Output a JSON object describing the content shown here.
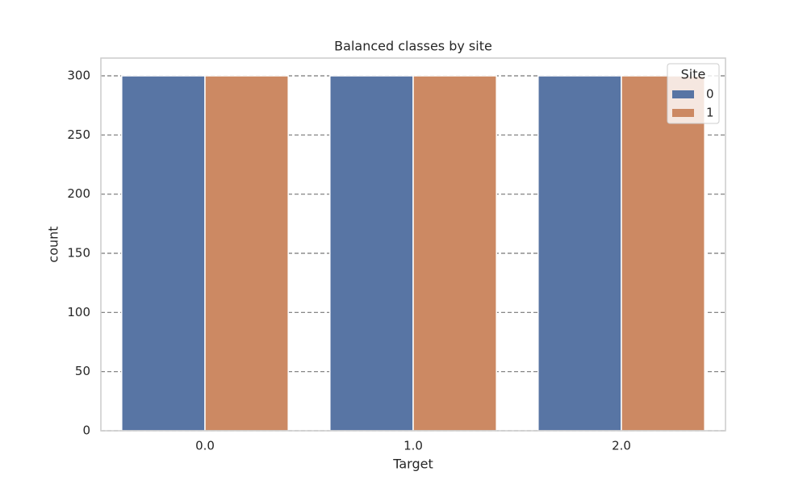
{
  "chart_data": {
    "type": "bar",
    "title": "Balanced classes by site",
    "x_label": "Target",
    "y_label": "count",
    "categories": [
      "0.0",
      "1.0",
      "2.0"
    ],
    "series": [
      {
        "name": "0",
        "color": "#5875a4",
        "values": [
          300,
          300,
          300
        ]
      },
      {
        "name": "1",
        "color": "#cc8963",
        "values": [
          300,
          300,
          300
        ]
      }
    ],
    "legend_title": "Site",
    "legend": "upper right",
    "ylim": [
      0,
      315
    ],
    "yticks": [
      0,
      50,
      100,
      150,
      200,
      250,
      300
    ],
    "grid": true
  }
}
